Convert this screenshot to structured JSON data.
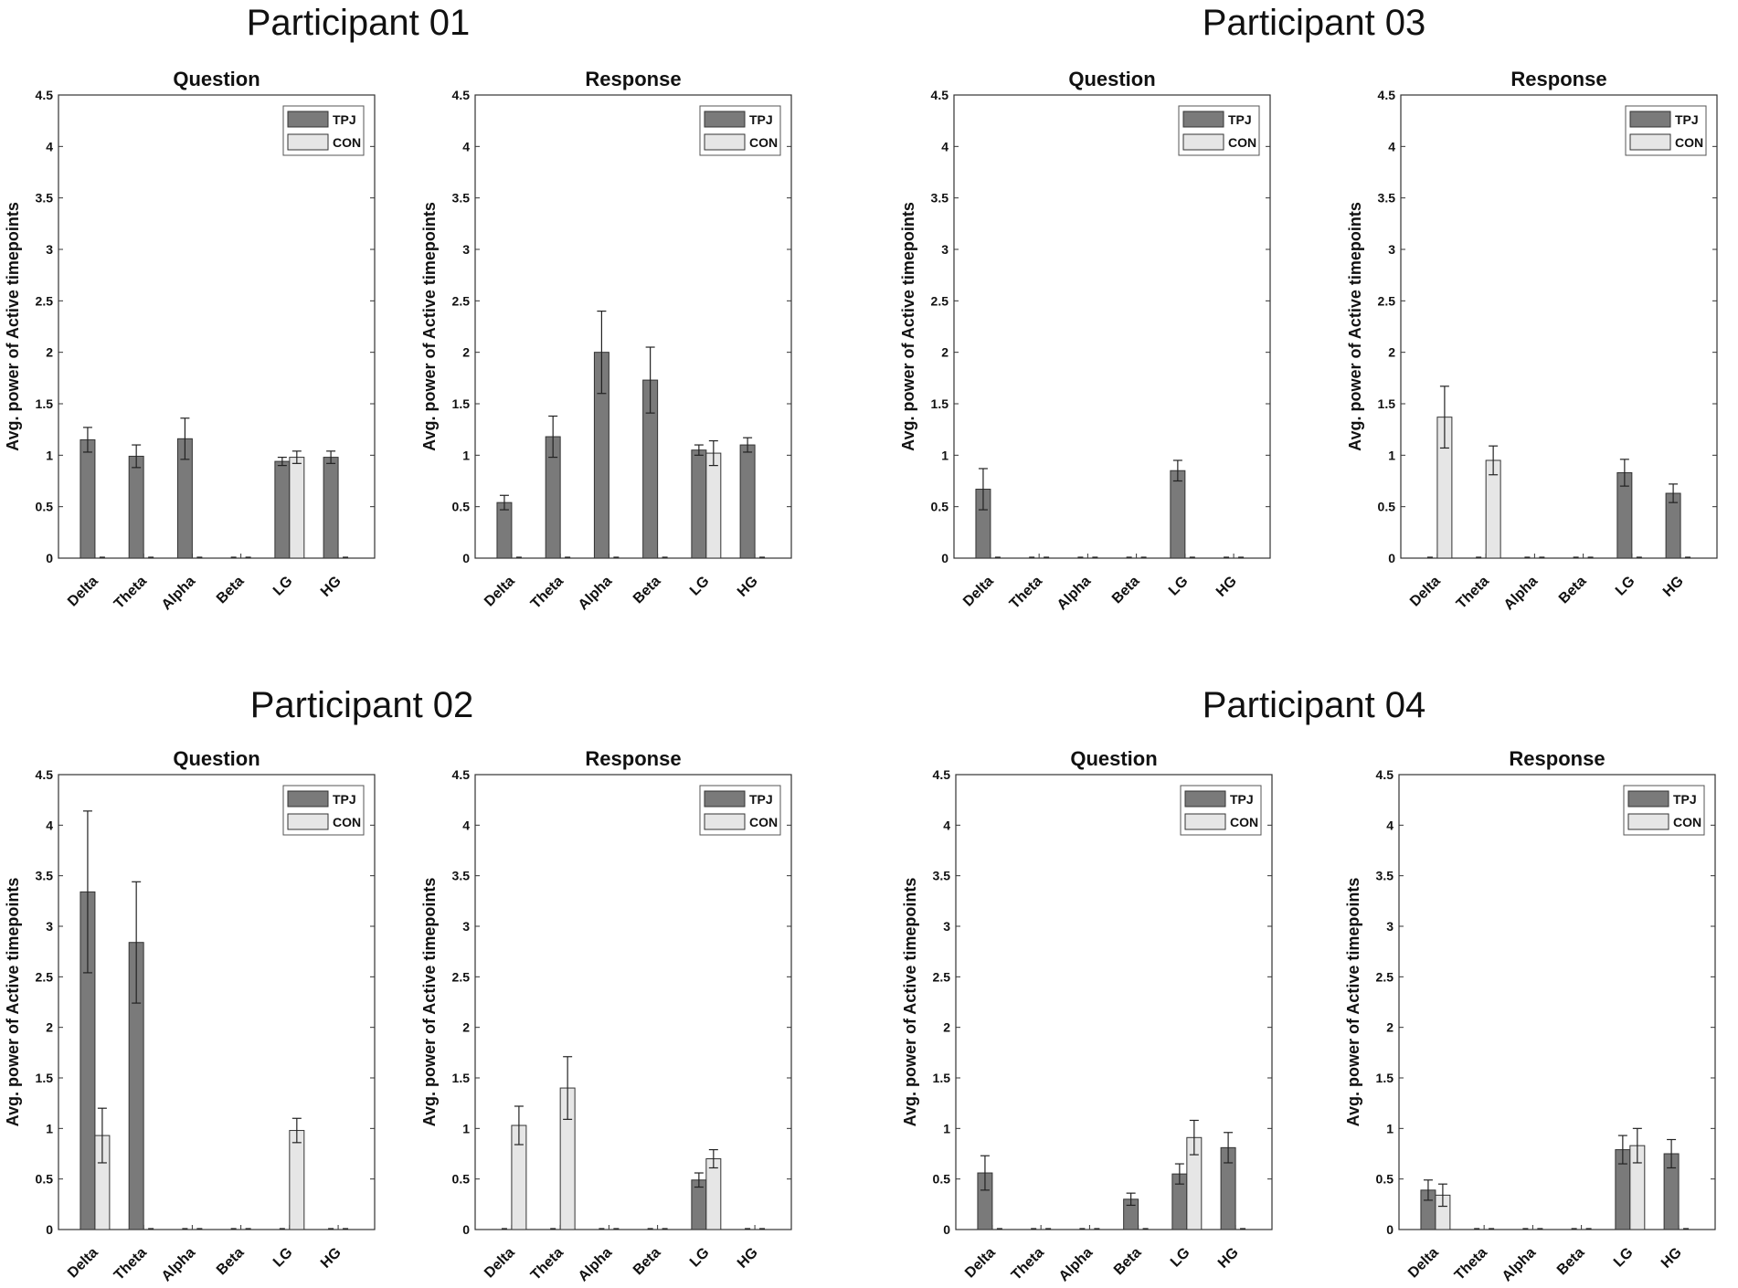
{
  "colors": {
    "tpj": "#7a7a7a",
    "con": "#e6e6e6",
    "axis": "#333333",
    "error": "#222222"
  },
  "axis_defaults": {
    "ylabel": "Avg. power of Active timepoints",
    "yticks": [
      "0",
      "0.5",
      "1",
      "1.5",
      "2",
      "2.5",
      "3",
      "3.5",
      "4",
      "4.5"
    ],
    "categories": [
      "Delta",
      "Theta",
      "Alpha",
      "Beta",
      "LG",
      "HG"
    ],
    "legend": [
      "TPJ",
      "CON"
    ]
  },
  "participants": [
    {
      "title": "Participant 01"
    },
    {
      "title": "Participant 03"
    },
    {
      "title": "Participant 02"
    },
    {
      "title": "Participant 04"
    }
  ],
  "chart_data": [
    {
      "participant": "Participant 01",
      "type": "bar",
      "title": "Question",
      "xlabel": "",
      "ylabel": "Avg. power of Active timepoints",
      "ylim": [
        0,
        4.5
      ],
      "legend_position": "top-right",
      "categories": [
        "Delta",
        "Theta",
        "Alpha",
        "Beta",
        "LG",
        "HG"
      ],
      "series": [
        {
          "name": "TPJ",
          "values": [
            1.15,
            0.99,
            1.16,
            0,
            0.94,
            0.98
          ],
          "errors": [
            0.12,
            0.11,
            0.2,
            0,
            0.04,
            0.06
          ]
        },
        {
          "name": "CON",
          "values": [
            0,
            0,
            0,
            0,
            0.98,
            0
          ],
          "errors": [
            0,
            0,
            0,
            0,
            0.06,
            0
          ]
        }
      ]
    },
    {
      "participant": "Participant 01",
      "type": "bar",
      "title": "Response",
      "xlabel": "",
      "ylabel": "Avg. power of Active timepoints",
      "ylim": [
        0,
        4.5
      ],
      "legend_position": "top-right",
      "categories": [
        "Delta",
        "Theta",
        "Alpha",
        "Beta",
        "LG",
        "HG"
      ],
      "series": [
        {
          "name": "TPJ",
          "values": [
            0.54,
            1.18,
            2.0,
            1.73,
            1.05,
            1.1
          ],
          "errors": [
            0.07,
            0.2,
            0.4,
            0.32,
            0.05,
            0.07
          ]
        },
        {
          "name": "CON",
          "values": [
            0,
            0,
            0,
            0,
            1.02,
            0
          ],
          "errors": [
            0,
            0,
            0,
            0,
            0.12,
            0
          ]
        }
      ]
    },
    {
      "participant": "Participant 03",
      "type": "bar",
      "title": "Question",
      "xlabel": "",
      "ylabel": "Avg. power of Active timepoints",
      "ylim": [
        0,
        4.5
      ],
      "legend_position": "top-right",
      "categories": [
        "Delta",
        "Theta",
        "Alpha",
        "Beta",
        "LG",
        "HG"
      ],
      "series": [
        {
          "name": "TPJ",
          "values": [
            0.67,
            0,
            0,
            0,
            0.85,
            0
          ],
          "errors": [
            0.2,
            0,
            0,
            0,
            0.1,
            0
          ]
        },
        {
          "name": "CON",
          "values": [
            0,
            0,
            0,
            0,
            0,
            0
          ],
          "errors": [
            0,
            0,
            0,
            0,
            0,
            0
          ]
        }
      ]
    },
    {
      "participant": "Participant 03",
      "type": "bar",
      "title": "Response",
      "xlabel": "",
      "ylabel": "Avg. power of Active timepoints",
      "ylim": [
        0,
        4.5
      ],
      "legend_position": "top-right",
      "categories": [
        "Delta",
        "Theta",
        "Alpha",
        "Beta",
        "LG",
        "HG"
      ],
      "series": [
        {
          "name": "TPJ",
          "values": [
            0,
            0,
            0,
            0,
            0.83,
            0.63
          ],
          "errors": [
            0,
            0,
            0,
            0,
            0.13,
            0.09
          ]
        },
        {
          "name": "CON",
          "values": [
            1.37,
            0.95,
            0,
            0,
            0,
            0
          ],
          "errors": [
            0.3,
            0.14,
            0,
            0,
            0,
            0
          ]
        }
      ]
    },
    {
      "participant": "Participant 02",
      "type": "bar",
      "title": "Question",
      "xlabel": "",
      "ylabel": "Avg. power of Active timepoints",
      "ylim": [
        0,
        4.5
      ],
      "legend_position": "top-right",
      "categories": [
        "Delta",
        "Theta",
        "Alpha",
        "Beta",
        "LG",
        "HG"
      ],
      "series": [
        {
          "name": "TPJ",
          "values": [
            3.34,
            2.84,
            0,
            0,
            0,
            0
          ],
          "errors": [
            0.8,
            0.6,
            0,
            0,
            0,
            0
          ]
        },
        {
          "name": "CON",
          "values": [
            0.93,
            0,
            0,
            0,
            0.98,
            0
          ],
          "errors": [
            0.27,
            0,
            0,
            0,
            0.12,
            0
          ]
        }
      ]
    },
    {
      "participant": "Participant 02",
      "type": "bar",
      "title": "Response",
      "xlabel": "",
      "ylabel": "Avg. power of Active timepoints",
      "ylim": [
        0,
        4.5
      ],
      "legend_position": "top-right",
      "categories": [
        "Delta",
        "Theta",
        "Alpha",
        "Beta",
        "LG",
        "HG"
      ],
      "series": [
        {
          "name": "TPJ",
          "values": [
            0,
            0,
            0,
            0,
            0.49,
            0
          ],
          "errors": [
            0,
            0,
            0,
            0,
            0.07,
            0
          ]
        },
        {
          "name": "CON",
          "values": [
            1.03,
            1.4,
            0,
            0,
            0.7,
            0
          ],
          "errors": [
            0.19,
            0.31,
            0,
            0,
            0.09,
            0
          ]
        }
      ]
    },
    {
      "participant": "Participant 04",
      "type": "bar",
      "title": "Question",
      "xlabel": "",
      "ylabel": "Avg. power of Active timepoints",
      "ylim": [
        0,
        4.5
      ],
      "legend_position": "top-right",
      "categories": [
        "Delta",
        "Theta",
        "Alpha",
        "Beta",
        "LG",
        "HG"
      ],
      "series": [
        {
          "name": "TPJ",
          "values": [
            0.56,
            0,
            0,
            0.3,
            0.55,
            0.81
          ],
          "errors": [
            0.17,
            0,
            0,
            0.06,
            0.1,
            0.15
          ]
        },
        {
          "name": "CON",
          "values": [
            0,
            0,
            0,
            0,
            0.91,
            0
          ],
          "errors": [
            0,
            0,
            0,
            0,
            0.17,
            0
          ]
        }
      ]
    },
    {
      "participant": "Participant 04",
      "type": "bar",
      "title": "Response",
      "xlabel": "",
      "ylabel": "Avg. power of Active timepoints",
      "ylim": [
        0,
        4.5
      ],
      "legend_position": "top-right",
      "categories": [
        "Delta",
        "Theta",
        "Alpha",
        "Beta",
        "LG",
        "HG"
      ],
      "series": [
        {
          "name": "TPJ",
          "values": [
            0.39,
            0,
            0,
            0,
            0.79,
            0.75
          ],
          "errors": [
            0.1,
            0,
            0,
            0,
            0.14,
            0.14
          ]
        },
        {
          "name": "CON",
          "values": [
            0.34,
            0,
            0,
            0,
            0.83,
            0
          ],
          "errors": [
            0.11,
            0,
            0,
            0,
            0.17,
            0
          ]
        }
      ]
    }
  ]
}
